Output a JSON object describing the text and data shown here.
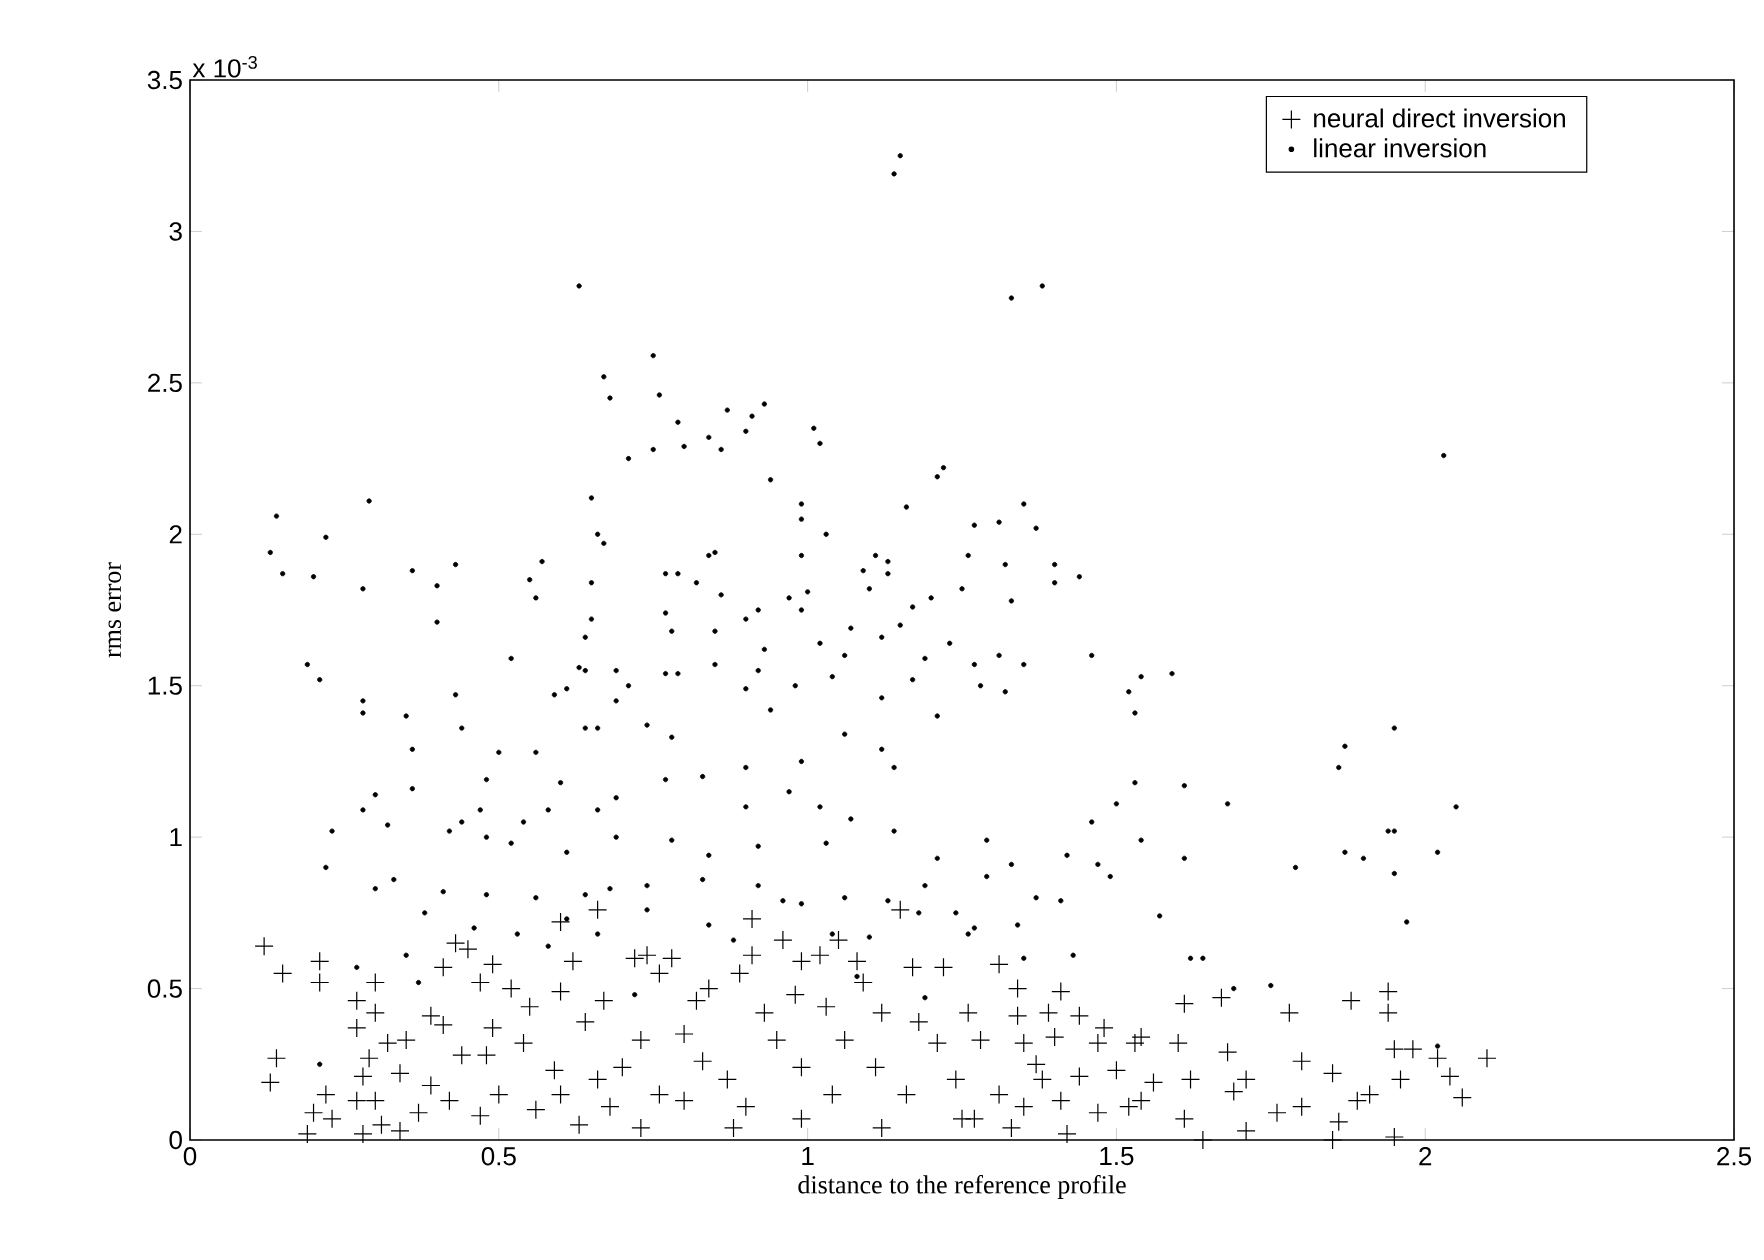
{
  "chart_data": {
    "type": "scatter",
    "xlabel": "distance to the reference profile",
    "ylabel": "rms error",
    "annotations": [
      "x 10$^{-3}$"
    ],
    "xlim": [
      0,
      2.5
    ],
    "ylim": [
      0,
      3.5
    ],
    "xticks": [
      0,
      0.5,
      1,
      1.5,
      2,
      2.5
    ],
    "yticks": [
      0,
      0.5,
      1,
      1.5,
      2,
      2.5,
      3,
      3.5
    ],
    "legend": "top right",
    "series": [
      {
        "name": "neural direct inversion",
        "color": "#000000",
        "marker": "cross",
        "x": [
          0.12,
          0.15,
          0.21,
          0.21,
          0.14,
          0.13,
          0.22,
          0.2,
          0.23,
          0.19,
          0.27,
          0.3,
          0.3,
          0.27,
          0.29,
          0.28,
          0.27,
          0.3,
          0.31,
          0.28,
          0.32,
          0.35,
          0.34,
          0.37,
          0.34,
          0.39,
          0.41,
          0.43,
          0.45,
          0.39,
          0.41,
          0.44,
          0.42,
          0.47,
          0.49,
          0.52,
          0.49,
          0.48,
          0.5,
          0.47,
          0.54,
          0.55,
          0.6,
          0.66,
          0.6,
          0.62,
          0.59,
          0.56,
          0.64,
          0.66,
          0.63,
          0.67,
          0.72,
          0.74,
          0.78,
          0.76,
          0.73,
          0.7,
          0.76,
          0.73,
          0.8,
          0.82,
          0.84,
          0.8,
          0.83,
          0.87,
          0.9,
          0.88,
          0.89,
          0.91,
          0.91,
          0.93,
          0.95,
          0.96,
          0.99,
          1.02,
          0.98,
          1.03,
          0.99,
          0.99,
          1.04,
          1.06,
          1.05,
          1.08,
          1.09,
          1.15,
          1.17,
          1.22,
          1.12,
          1.18,
          1.21,
          1.11,
          1.16,
          1.12,
          1.24,
          1.25,
          0.6,
          0.68,
          1.31,
          1.34,
          1.41,
          1.26,
          1.34,
          1.39,
          1.44,
          1.28,
          1.35,
          1.4,
          1.48,
          1.54,
          1.6,
          1.47,
          1.5,
          1.53,
          1.61,
          1.67,
          1.78,
          1.88,
          1.94,
          1.94,
          1.95,
          1.98,
          2.04,
          2.06,
          2.1,
          2.02,
          1.68,
          1.71,
          1.69,
          1.8,
          1.8,
          1.76,
          1.85,
          1.89,
          1.91,
          1.96,
          1.86,
          1.85,
          1.95,
          1.62,
          1.61,
          1.64,
          1.71,
          1.56,
          1.54,
          1.52,
          1.44,
          1.41,
          1.38,
          1.35,
          1.31,
          1.27,
          1.33,
          1.42,
          1.47,
          1.37
        ],
        "values": [
          0.64,
          0.55,
          0.59,
          0.52,
          0.27,
          0.19,
          0.15,
          0.09,
          0.07,
          0.02,
          0.46,
          0.52,
          0.42,
          0.37,
          0.27,
          0.21,
          0.13,
          0.13,
          0.05,
          0.02,
          0.32,
          0.33,
          0.22,
          0.09,
          0.03,
          0.18,
          0.57,
          0.65,
          0.63,
          0.41,
          0.38,
          0.28,
          0.13,
          0.52,
          0.58,
          0.5,
          0.37,
          0.28,
          0.15,
          0.08,
          0.32,
          0.44,
          0.72,
          0.76,
          0.49,
          0.59,
          0.23,
          0.1,
          0.39,
          0.2,
          0.05,
          0.46,
          0.6,
          0.61,
          0.6,
          0.55,
          0.33,
          0.24,
          0.15,
          0.04,
          0.13,
          0.46,
          0.5,
          0.35,
          0.26,
          0.2,
          0.11,
          0.04,
          0.55,
          0.73,
          0.61,
          0.42,
          0.33,
          0.66,
          0.59,
          0.61,
          0.48,
          0.44,
          0.24,
          0.07,
          0.15,
          0.33,
          0.66,
          0.59,
          0.52,
          0.76,
          0.57,
          0.57,
          0.42,
          0.39,
          0.32,
          0.24,
          0.15,
          0.04,
          0.2,
          0.07,
          0.15,
          0.11,
          0.58,
          0.5,
          0.49,
          0.42,
          0.41,
          0.42,
          0.41,
          0.33,
          0.32,
          0.34,
          0.37,
          0.34,
          0.32,
          0.32,
          0.23,
          0.32,
          0.45,
          0.47,
          0.42,
          0.46,
          0.49,
          0.42,
          0.3,
          0.3,
          0.21,
          0.14,
          0.27,
          0.27,
          0.29,
          0.2,
          0.16,
          0.26,
          0.11,
          0.09,
          0.22,
          0.13,
          0.15,
          0.2,
          0.06,
          0.0,
          0.01,
          0.2,
          0.07,
          0.0,
          0.03,
          0.19,
          0.13,
          0.11,
          0.21,
          0.13,
          0.2,
          0.11,
          0.15,
          0.07,
          0.04,
          0.02,
          0.09,
          0.25
        ]
      },
      {
        "name": "linear inversion",
        "color": "#000000",
        "marker": "circle",
        "x": [
          1.14,
          1.15,
          0.63,
          0.75,
          0.67,
          0.68,
          0.76,
          0.79,
          0.75,
          0.71,
          0.8,
          0.87,
          0.91,
          0.93,
          0.9,
          0.84,
          0.86,
          1.01,
          1.02,
          0.94,
          1.21,
          1.22,
          1.16,
          0.14,
          0.13,
          0.15,
          0.29,
          0.22,
          0.2,
          0.28,
          0.65,
          0.66,
          0.67,
          0.36,
          0.43,
          0.4,
          0.4,
          0.55,
          0.57,
          0.56,
          0.65,
          0.84,
          0.85,
          0.77,
          0.79,
          0.82,
          0.86,
          0.77,
          0.78,
          0.65,
          0.64,
          0.85,
          0.9,
          0.92,
          0.99,
          0.99,
          0.99,
          1.03,
          1.0,
          0.99,
          0.97,
          1.11,
          1.09,
          1.13,
          1.13,
          1.1,
          1.26,
          1.25,
          1.17,
          1.2,
          1.15,
          1.12,
          1.07,
          1.02,
          1.06,
          1.04,
          1.19,
          1.23,
          1.17,
          0.52,
          0.19,
          0.21,
          0.28,
          0.28,
          0.43,
          0.35,
          0.61,
          0.59,
          0.63,
          0.64,
          0.69,
          0.69,
          0.71,
          0.77,
          0.79,
          0.85,
          0.9,
          0.92,
          0.93,
          0.98,
          1.12,
          1.33,
          1.38,
          2.03,
          1.35,
          1.27,
          1.31,
          1.37,
          1.32,
          1.4,
          1.4,
          1.44,
          1.33,
          1.46,
          1.35,
          1.31,
          1.27,
          1.28,
          1.32,
          1.54,
          1.59,
          1.52,
          1.53,
          1.95,
          1.87,
          1.86,
          2.05,
          1.53,
          1.61,
          1.5,
          1.68,
          1.46,
          1.54,
          1.94,
          1.95,
          1.87,
          1.9,
          2.02,
          1.79,
          1.95,
          1.61,
          1.97,
          1.57,
          1.43,
          1.62,
          1.64,
          1.42,
          1.47,
          1.49,
          1.41,
          1.37,
          1.75,
          1.69,
          1.29,
          1.33,
          1.29,
          1.34,
          1.27,
          1.35,
          2.02,
          0.36,
          0.36,
          0.44,
          0.3,
          0.28,
          0.23,
          0.22,
          0.3,
          0.33,
          0.32,
          0.5,
          0.48,
          0.56,
          0.6,
          0.64,
          0.66,
          0.74,
          0.78,
          0.9,
          0.94,
          1.06,
          1.12,
          1.14,
          1.21,
          1.02,
          0.99,
          0.97,
          0.9,
          0.83,
          0.77,
          0.69,
          0.66,
          0.58,
          0.54,
          0.47,
          0.44,
          0.42,
          0.48,
          0.52,
          0.61,
          0.69,
          0.78,
          0.84,
          0.92,
          1.03,
          1.07,
          1.14,
          1.21,
          1.19,
          1.13,
          1.06,
          0.99,
          0.92,
          0.83,
          0.74,
          0.68,
          0.64,
          0.56,
          0.48,
          0.41,
          0.38,
          0.46,
          0.53,
          0.61,
          0.66,
          0.74,
          0.84,
          0.88,
          0.96,
          1.04,
          1.1,
          1.18,
          1.24,
          0.35,
          0.58,
          0.72,
          0.37,
          0.21,
          0.27,
          1.08,
          1.19,
          1.26
        ],
        "values": [
          3.19,
          3.25,
          2.82,
          2.59,
          2.52,
          2.45,
          2.46,
          2.37,
          2.28,
          2.25,
          2.29,
          2.41,
          2.39,
          2.43,
          2.34,
          2.32,
          2.28,
          2.35,
          2.3,
          2.18,
          2.19,
          2.22,
          2.09,
          2.06,
          1.94,
          1.87,
          2.11,
          1.99,
          1.86,
          1.82,
          2.12,
          2.0,
          1.97,
          1.88,
          1.9,
          1.83,
          1.71,
          1.85,
          1.91,
          1.79,
          1.84,
          1.93,
          1.94,
          1.87,
          1.87,
          1.84,
          1.8,
          1.74,
          1.68,
          1.72,
          1.66,
          1.68,
          1.72,
          1.75,
          1.93,
          2.1,
          2.05,
          2.0,
          1.81,
          1.75,
          1.79,
          1.93,
          1.88,
          1.91,
          1.87,
          1.82,
          1.93,
          1.82,
          1.76,
          1.79,
          1.7,
          1.66,
          1.69,
          1.64,
          1.6,
          1.53,
          1.59,
          1.64,
          1.52,
          1.59,
          1.57,
          1.52,
          1.45,
          1.41,
          1.47,
          1.4,
          1.49,
          1.47,
          1.56,
          1.55,
          1.55,
          1.45,
          1.5,
          1.54,
          1.54,
          1.57,
          1.49,
          1.55,
          1.62,
          1.5,
          1.46,
          2.78,
          2.82,
          2.26,
          2.1,
          2.03,
          2.04,
          2.02,
          1.9,
          1.9,
          1.84,
          1.86,
          1.78,
          1.6,
          1.57,
          1.6,
          1.57,
          1.5,
          1.48,
          1.53,
          1.54,
          1.48,
          1.41,
          1.36,
          1.3,
          1.23,
          1.1,
          1.18,
          1.17,
          1.11,
          1.11,
          1.05,
          0.99,
          1.02,
          1.02,
          0.95,
          0.93,
          0.95,
          0.9,
          0.88,
          0.93,
          0.72,
          0.74,
          0.61,
          0.6,
          0.6,
          0.94,
          0.91,
          0.87,
          0.79,
          0.8,
          0.51,
          0.5,
          0.99,
          0.91,
          0.87,
          0.71,
          0.7,
          0.6,
          0.31,
          1.29,
          1.16,
          1.36,
          1.14,
          1.09,
          1.02,
          0.9,
          0.83,
          0.86,
          1.04,
          1.28,
          1.19,
          1.28,
          1.18,
          1.36,
          1.36,
          1.37,
          1.33,
          1.23,
          1.42,
          1.34,
          1.29,
          1.23,
          1.4,
          1.1,
          1.25,
          1.15,
          1.1,
          1.2,
          1.19,
          1.13,
          1.09,
          1.09,
          1.05,
          1.09,
          1.05,
          1.02,
          1.0,
          0.98,
          0.95,
          1.0,
          0.99,
          0.94,
          0.97,
          0.98,
          1.06,
          1.02,
          0.93,
          0.84,
          0.79,
          0.8,
          0.78,
          0.84,
          0.86,
          0.84,
          0.83,
          0.81,
          0.8,
          0.81,
          0.82,
          0.75,
          0.7,
          0.68,
          0.73,
          0.68,
          0.76,
          0.71,
          0.66,
          0.79,
          0.68,
          0.67,
          0.75,
          0.75,
          0.61,
          0.64,
          0.48,
          0.52,
          0.25,
          0.57,
          0.54,
          0.47,
          0.68
        ]
      }
    ]
  }
}
